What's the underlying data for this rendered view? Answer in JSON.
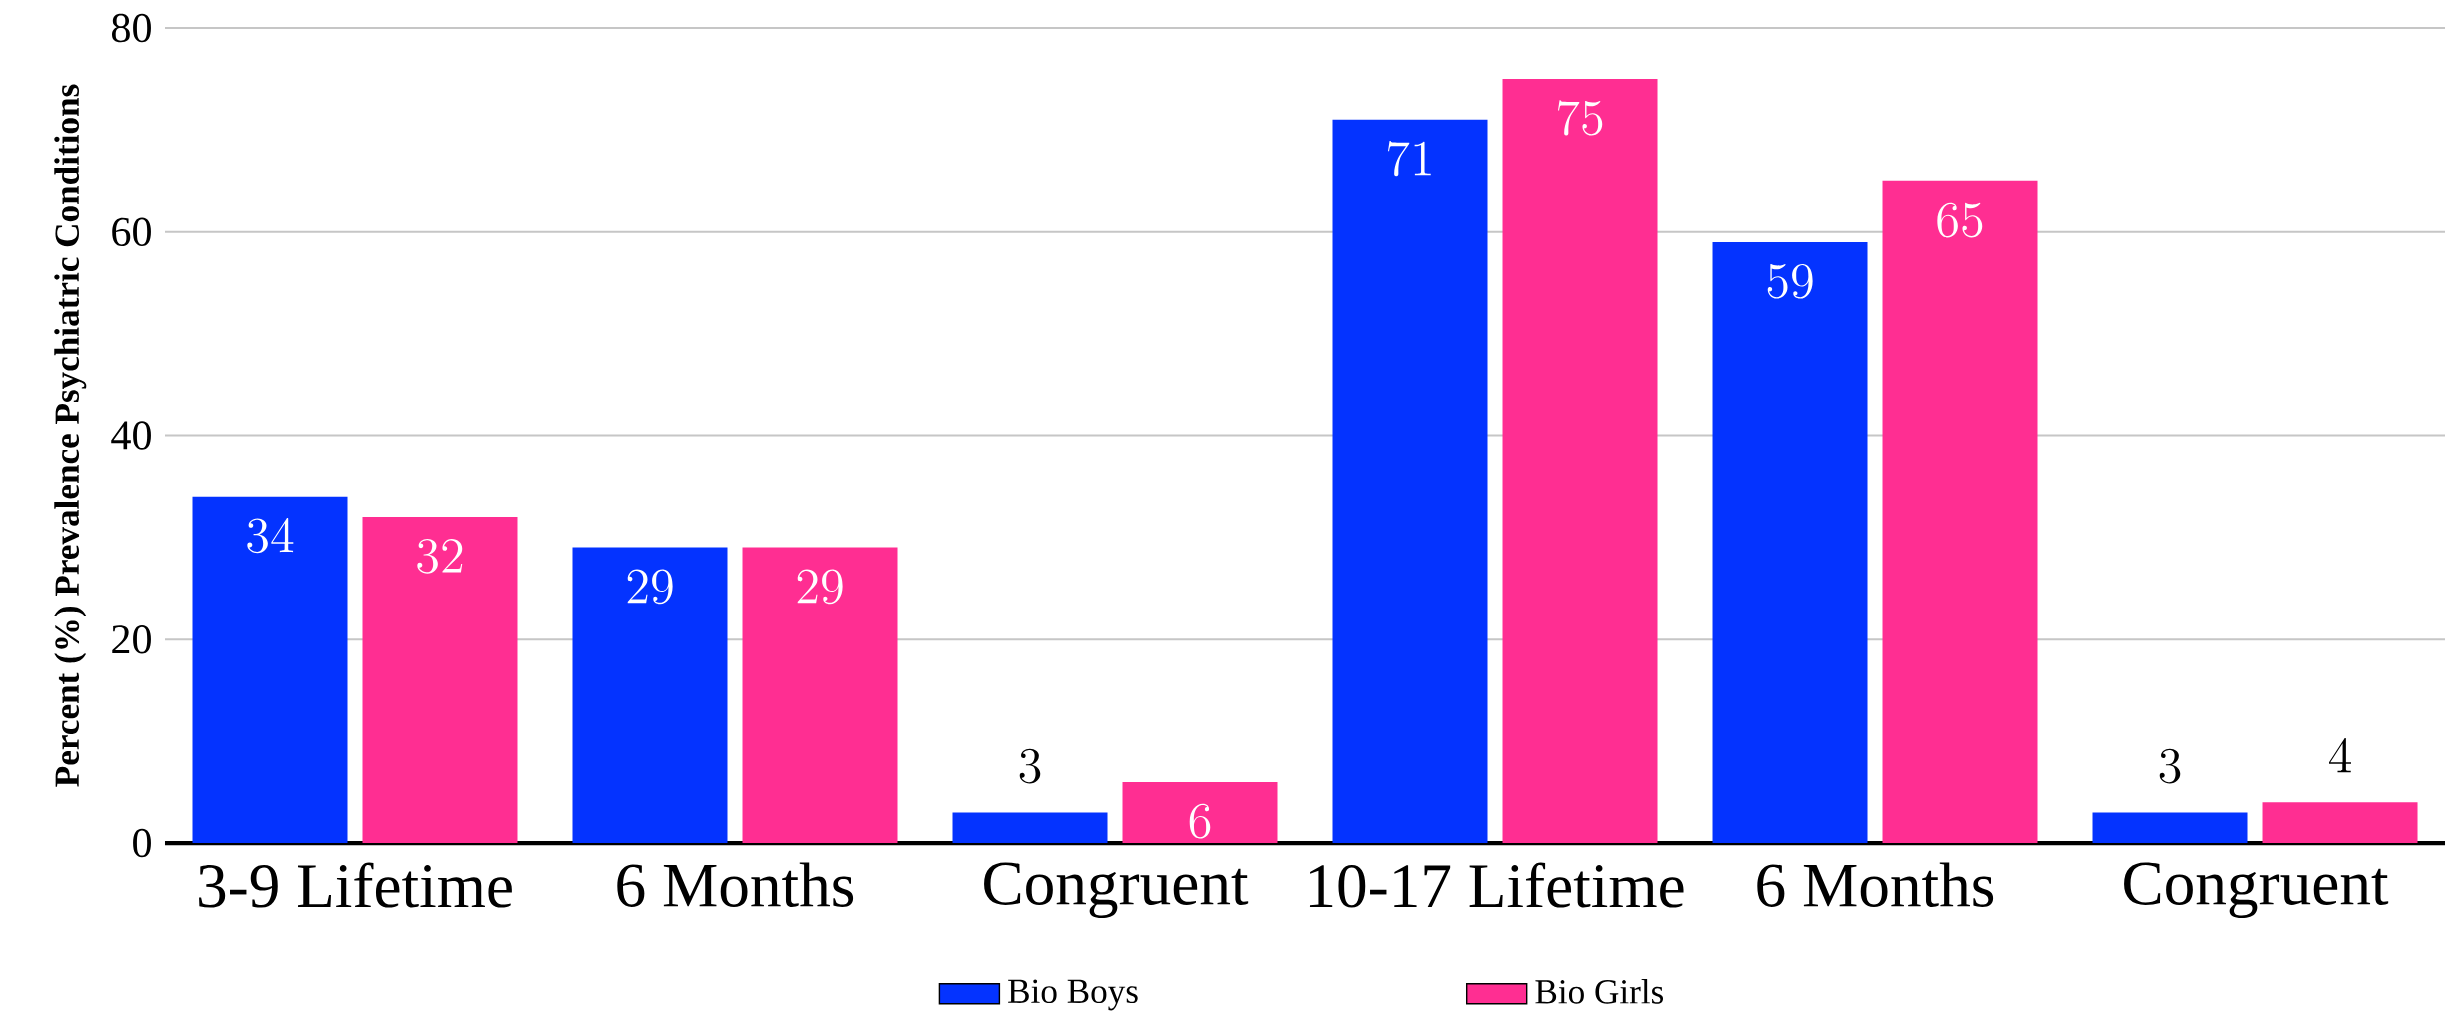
{
  "chart_data": {
    "type": "bar",
    "ylabel": "Percent (%) Prevalence Psychiatric Conditions",
    "categories": [
      "3-9 Lifetime",
      "6 Months",
      "Congruent",
      "10-17 Lifetime",
      "6 Months",
      "Congruent"
    ],
    "series": [
      {
        "name": "Bio Boys",
        "color": "#0433ff",
        "values": [
          34,
          29,
          3,
          71,
          59,
          3
        ]
      },
      {
        "name": "Bio Girls",
        "color": "#ff2e92",
        "values": [
          32,
          29,
          6,
          75,
          65,
          4
        ]
      }
    ],
    "ylim": [
      0,
      80
    ],
    "yticks": [
      0,
      20,
      40,
      60,
      80
    ],
    "grid": "y",
    "legend": "bottom",
    "data_labels": true
  }
}
